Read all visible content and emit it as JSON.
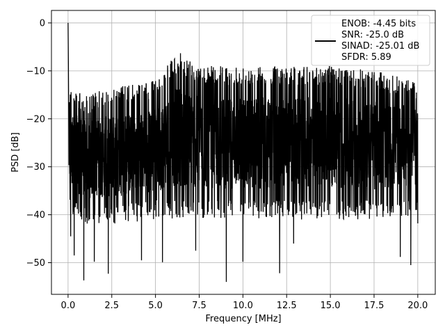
{
  "chart_data": {
    "type": "line",
    "title": "",
    "xlabel": "Frequency [MHz]",
    "ylabel": "PSD [dB]",
    "xlim": [
      -0.95,
      21.0
    ],
    "ylim": [
      -56.6,
      2.6
    ],
    "xticks": [
      0.0,
      2.5,
      5.0,
      7.5,
      10.0,
      12.5,
      15.0,
      17.5,
      20.0
    ],
    "xtick_labels": [
      "0.0",
      "2.5",
      "5.0",
      "7.5",
      "10.0",
      "12.5",
      "15.0",
      "17.5",
      "20.0"
    ],
    "yticks": [
      0,
      -10,
      -20,
      -30,
      -40,
      -50
    ],
    "ytick_labels": [
      "0",
      "−10",
      "−20",
      "−30",
      "−40",
      "−50"
    ],
    "grid": true,
    "legend_position": "upper-right",
    "legend_lines": [
      "ENOB: -4.45 bits",
      "SNR: -25.0 dB",
      "SINAD: -25.01 dB",
      "SFDR: 5.89"
    ],
    "series": [
      {
        "color": "#000000",
        "x_range": [
          0.0,
          20.0
        ],
        "peak": {
          "x": 0.0,
          "y": 0.0
        },
        "noise_envelope": {
          "x": [
            0.1,
            1,
            2.5,
            5,
            6.3,
            7.5,
            10,
            12.5,
            15,
            17.5,
            20
          ],
          "upper": [
            -13,
            -15,
            -13.5,
            -12,
            -6,
            -9,
            -9,
            -9,
            -9,
            -10,
            -12
          ],
          "lower_typical": [
            -40,
            -42,
            -42,
            -41,
            -41,
            -41,
            -41,
            -41,
            -41,
            -41,
            -40
          ]
        },
        "notable_dips": [
          {
            "x": 0.15,
            "y": -44.5
          },
          {
            "x": 0.35,
            "y": -48.5
          },
          {
            "x": 0.9,
            "y": -53.7
          },
          {
            "x": 1.5,
            "y": -49.8
          },
          {
            "x": 2.3,
            "y": -52.3
          },
          {
            "x": 4.2,
            "y": -49.5
          },
          {
            "x": 5.4,
            "y": -49.9
          },
          {
            "x": 7.3,
            "y": -47.5
          },
          {
            "x": 9.05,
            "y": -54.0
          },
          {
            "x": 10.0,
            "y": -49.8
          },
          {
            "x": 12.1,
            "y": -52.2
          },
          {
            "x": 12.9,
            "y": -46.0
          },
          {
            "x": 19.0,
            "y": -48.8
          },
          {
            "x": 19.6,
            "y": -50.5
          },
          {
            "x": 20.0,
            "y": -41.8
          }
        ]
      }
    ]
  }
}
